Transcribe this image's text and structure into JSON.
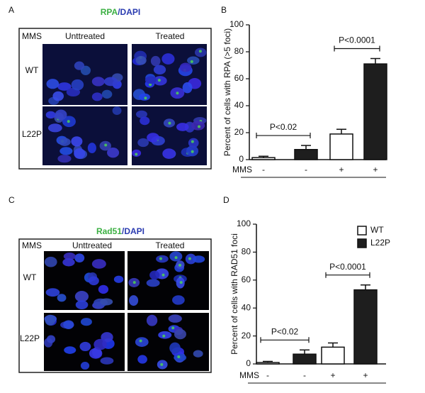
{
  "image_panels": [
    {
      "letter": "A",
      "title_parts": [
        "RPA",
        "/DAPI"
      ],
      "row_header": "MMS",
      "columns": [
        "Unttreated",
        "Treated"
      ],
      "rows": [
        "WT",
        "L22P"
      ]
    },
    {
      "letter": "C",
      "title_parts": [
        "Rad51",
        "/DAPI"
      ],
      "row_header": "MMS",
      "columns": [
        "Unttreated",
        "Treated"
      ],
      "rows": [
        "WT",
        "L22P"
      ]
    }
  ],
  "chart_data": [
    {
      "type": "bar",
      "letter": "B",
      "y_label": "Percent of cells with RPA  (>5 foci)",
      "x_row_label": "MMS",
      "categories": [
        "-",
        "-",
        "+",
        "+"
      ],
      "values": [
        1.5,
        7.5,
        19,
        71
      ],
      "errors": [
        1,
        3,
        3.5,
        4
      ],
      "colors": [
        "#ffffff",
        "#1e1e1e",
        "#ffffff",
        "#1e1e1e"
      ],
      "annotations": [
        "P<0.02",
        "P<0.0001"
      ],
      "ylim": [
        0,
        100
      ],
      "yticks": [
        0,
        20,
        40,
        60,
        80,
        100
      ]
    },
    {
      "type": "bar",
      "letter": "D",
      "y_label": "Percent of cells with  RAD51  foci",
      "x_row_label": "MMS",
      "categories": [
        "-",
        "-",
        "+",
        "+"
      ],
      "values": [
        1,
        7,
        12,
        53
      ],
      "errors": [
        0.8,
        3,
        3,
        3.5
      ],
      "colors": [
        "#ffffff",
        "#1e1e1e",
        "#ffffff",
        "#1e1e1e"
      ],
      "annotations": [
        "P<0.02",
        "P<0.0001"
      ],
      "legend": [
        {
          "label": "WT",
          "color": "#ffffff"
        },
        {
          "label": "L22P",
          "color": "#1e1e1e"
        }
      ],
      "ylim": [
        0,
        100
      ],
      "yticks": [
        0,
        20,
        40,
        60,
        80,
        100
      ]
    }
  ]
}
